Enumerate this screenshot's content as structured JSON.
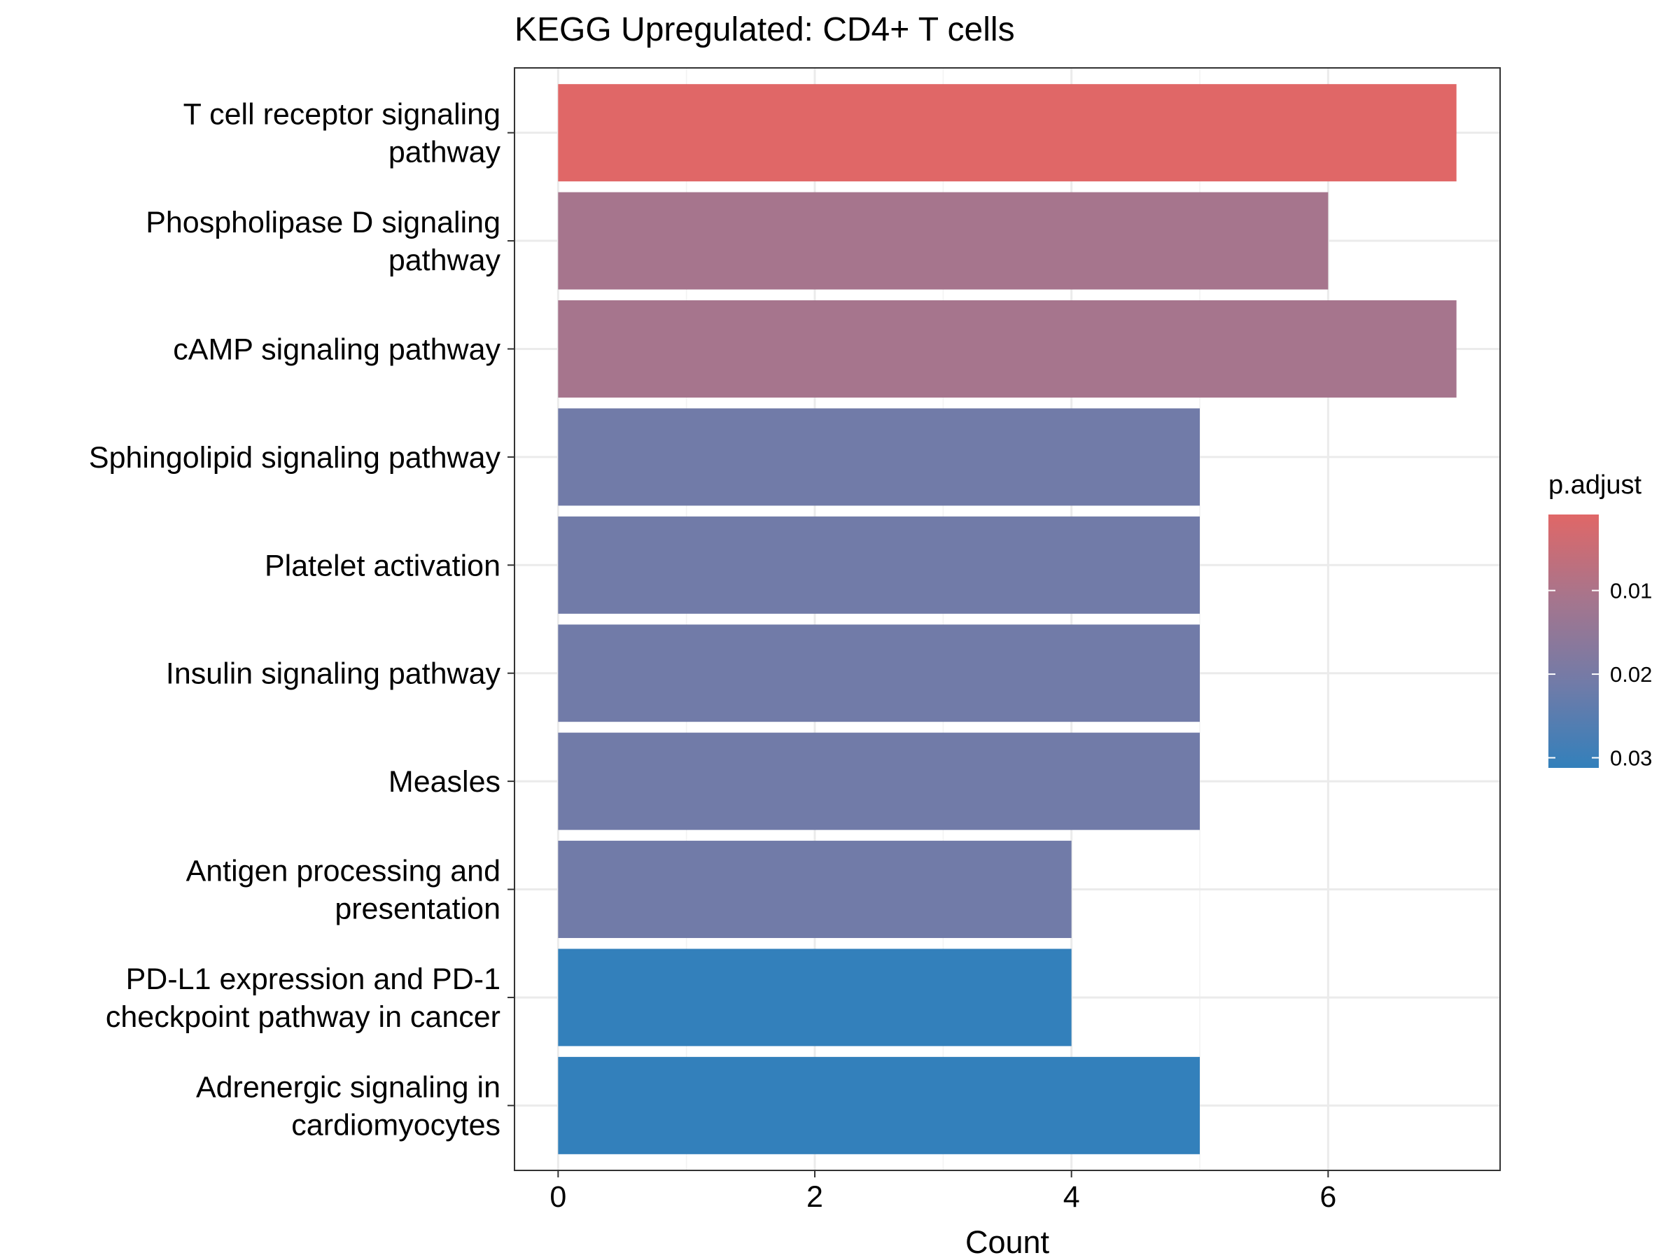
{
  "chart_data": {
    "type": "bar",
    "orientation": "horizontal",
    "title": "KEGG Upregulated: CD4+ T cells",
    "xlabel": "Count",
    "ylabel": "",
    "xlim": [
      -0.34,
      7.34
    ],
    "x_ticks": [
      0,
      2,
      4,
      6
    ],
    "x_tick_labels": [
      "0",
      "2",
      "4",
      "6"
    ],
    "grid": true,
    "categories": [
      [
        "T cell receptor signaling",
        "pathway"
      ],
      [
        "Phospholipase D signaling",
        "pathway"
      ],
      [
        "cAMP signaling pathway"
      ],
      [
        "Sphingolipid signaling pathway"
      ],
      [
        "Platelet activation"
      ],
      [
        "Insulin signaling pathway"
      ],
      [
        "Measles"
      ],
      [
        "Antigen processing and",
        "presentation"
      ],
      [
        "PD-L1 expression and PD-1",
        "checkpoint pathway in cancer"
      ],
      [
        "Adrenergic signaling in",
        "cardiomyocytes"
      ]
    ],
    "values": [
      7,
      6,
      7,
      5,
      5,
      5,
      5,
      4,
      4,
      5
    ],
    "bar_colors": [
      "#E06767",
      "#A6758D",
      "#A6758D",
      "#717BA8",
      "#717BA8",
      "#717BA8",
      "#717BA8",
      "#717BA8",
      "#3380BB",
      "#3380BB"
    ],
    "legend": {
      "title": "p.adjust",
      "placement": "right",
      "gradient_colors": [
        "#E06767",
        "#A6758D",
        "#717BA8",
        "#3380BB"
      ],
      "tick_labels": [
        "0.01",
        "0.02",
        "0.03"
      ],
      "tick_fractions": [
        0.3,
        0.63,
        0.96
      ]
    }
  }
}
